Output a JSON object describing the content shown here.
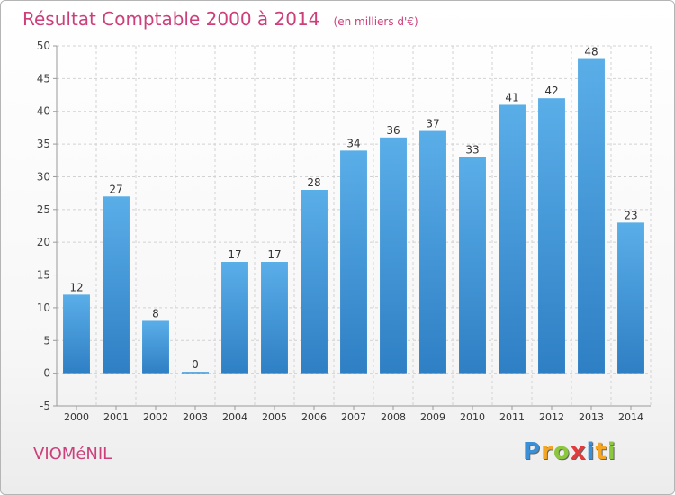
{
  "chart_data": {
    "type": "bar",
    "title": "Résultat Comptable 2000 à 2014",
    "subtitle": "(en milliers d'€)",
    "xlabel": "",
    "ylabel": "",
    "categories": [
      "2000",
      "2001",
      "2002",
      "2003",
      "2004",
      "2005",
      "2006",
      "2007",
      "2008",
      "2009",
      "2010",
      "2011",
      "2012",
      "2013",
      "2014"
    ],
    "values": [
      12,
      27,
      8,
      0,
      17,
      17,
      28,
      34,
      36,
      37,
      33,
      41,
      42,
      48,
      23
    ],
    "ylim": [
      -5,
      50
    ],
    "yticks": [
      -5,
      0,
      5,
      10,
      15,
      20,
      25,
      30,
      35,
      40,
      45,
      50
    ],
    "grid": true,
    "bar_color": "#3a8fd6"
  },
  "footer": {
    "label": "VIOMéNIL"
  },
  "brand": {
    "letters": [
      "P",
      "r",
      "o",
      "x",
      "i",
      "t",
      "i"
    ],
    "colors": [
      "#3a8fd6",
      "#f5a623",
      "#8dc63f",
      "#e23b3b",
      "#3a8fd6",
      "#f5a623",
      "#8dc63f"
    ]
  }
}
